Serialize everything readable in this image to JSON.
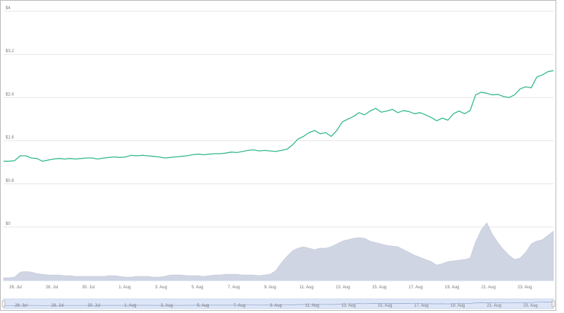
{
  "chart_data": {
    "type": "line",
    "title": "",
    "xlabel": "",
    "ylabel": "",
    "ylim": [
      0,
      4
    ],
    "y_ticks": [
      "$0",
      "$0.8",
      "$1.6",
      "$2.4",
      "$3.2",
      "$4"
    ],
    "y_tick_values": [
      0,
      0.8,
      1.6,
      2.4,
      3.2,
      4
    ],
    "x_ticks": [
      "26. Jul",
      "28. Jul",
      "30. Jul",
      "1. Aug",
      "3. Aug",
      "5. Aug",
      "7. Aug",
      "9. Aug",
      "11. Aug",
      "13. Aug",
      "15. Aug",
      "17. Aug",
      "19. Aug",
      "21. Aug",
      "23. Aug"
    ],
    "grid": true,
    "colors": {
      "price_line": "#2fb889",
      "volume_fill": "#cfd5e3",
      "navigator_fill": "#dde6f7",
      "grid": "#e6e6e6"
    },
    "series": [
      {
        "values": [
          1.22,
          1.22,
          1.23,
          1.32,
          1.32,
          1.28,
          1.27,
          1.22,
          1.24,
          1.26,
          1.27,
          1.26,
          1.27,
          1.26,
          1.27,
          1.28,
          1.28,
          1.26,
          1.28,
          1.29,
          1.3,
          1.29,
          1.3,
          1.33,
          1.32,
          1.33,
          1.32,
          1.31,
          1.3,
          1.28,
          1.29,
          1.3,
          1.31,
          1.32,
          1.34,
          1.35,
          1.34,
          1.35,
          1.36,
          1.36,
          1.37,
          1.39,
          1.38,
          1.4,
          1.42,
          1.43,
          1.41,
          1.42,
          1.41,
          1.4,
          1.42,
          1.44,
          1.52,
          1.63,
          1.68,
          1.75,
          1.79,
          1.73,
          1.75,
          1.68,
          1.79,
          1.95,
          2.0,
          2.05,
          2.12,
          2.08,
          2.15,
          2.2,
          2.13,
          2.15,
          2.18,
          2.12,
          2.16,
          2.14,
          2.1,
          2.12,
          2.08,
          2.03,
          1.97,
          2.02,
          1.98,
          2.1,
          2.15,
          2.1,
          2.16,
          2.45,
          2.5,
          2.48,
          2.45,
          2.46,
          2.42,
          2.4,
          2.45,
          2.56,
          2.6,
          2.58,
          2.78,
          2.82,
          2.88,
          2.9
        ]
      },
      {
        "name": "",
        "kind": "volume",
        "values": [
          0.04,
          0.04,
          0.05,
          0.12,
          0.13,
          0.12,
          0.1,
          0.09,
          0.08,
          0.08,
          0.08,
          0.07,
          0.07,
          0.06,
          0.06,
          0.06,
          0.06,
          0.06,
          0.06,
          0.07,
          0.07,
          0.06,
          0.05,
          0.05,
          0.06,
          0.06,
          0.06,
          0.05,
          0.05,
          0.06,
          0.08,
          0.08,
          0.08,
          0.07,
          0.07,
          0.07,
          0.06,
          0.07,
          0.08,
          0.08,
          0.09,
          0.09,
          0.09,
          0.08,
          0.08,
          0.08,
          0.07,
          0.08,
          0.09,
          0.14,
          0.25,
          0.34,
          0.42,
          0.46,
          0.48,
          0.46,
          0.44,
          0.46,
          0.46,
          0.48,
          0.52,
          0.56,
          0.58,
          0.6,
          0.61,
          0.6,
          0.56,
          0.54,
          0.52,
          0.5,
          0.49,
          0.48,
          0.44,
          0.4,
          0.36,
          0.33,
          0.3,
          0.27,
          0.22,
          0.24,
          0.27,
          0.28,
          0.29,
          0.3,
          0.32,
          0.55,
          0.72,
          0.82,
          0.66,
          0.54,
          0.44,
          0.36,
          0.3,
          0.32,
          0.4,
          0.52,
          0.56,
          0.58,
          0.64,
          0.7
        ]
      }
    ]
  }
}
